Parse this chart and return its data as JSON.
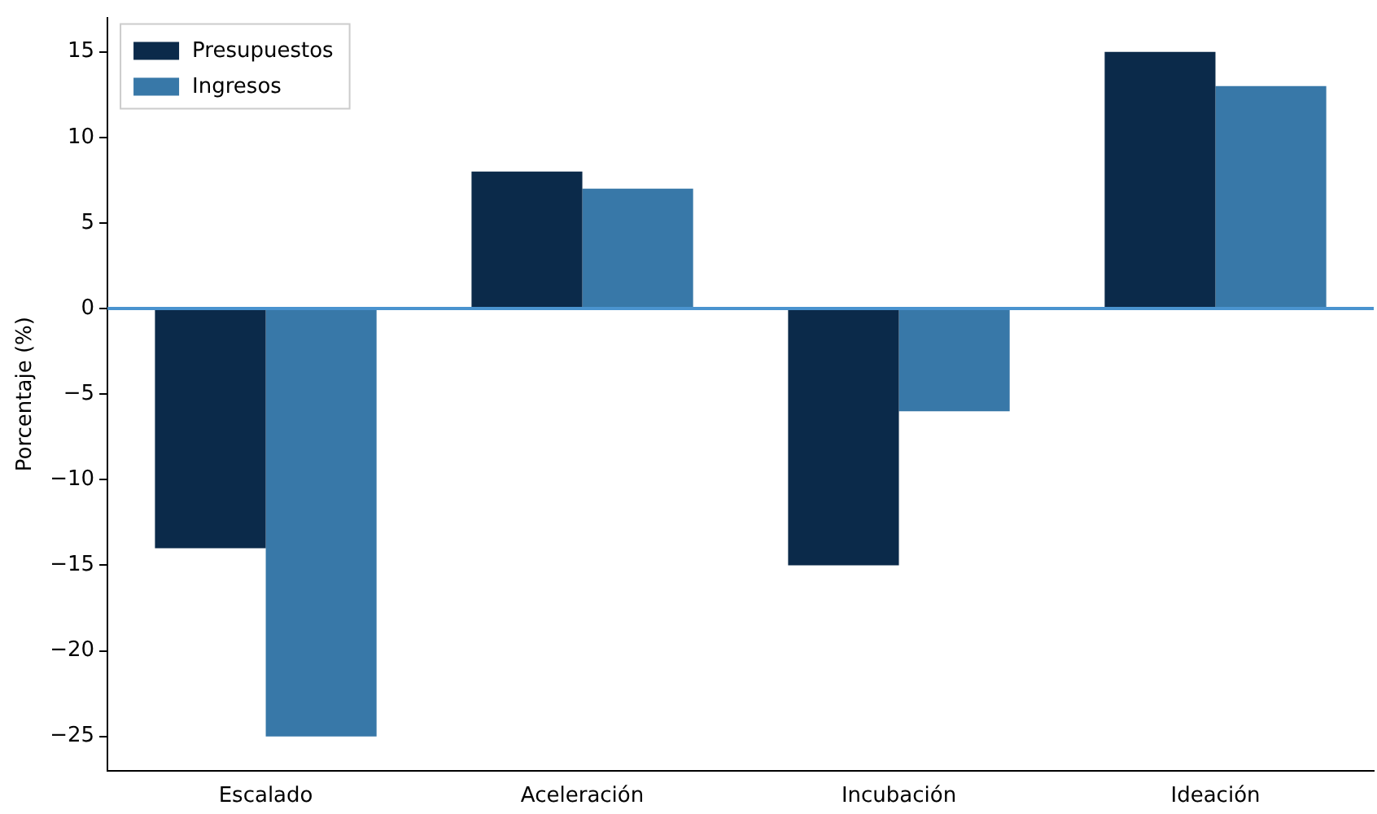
{
  "chart_data": {
    "type": "bar",
    "ylabel": "Porcentaje (%)",
    "categories": [
      "Escalado",
      "Aceleración",
      "Incubación",
      "Ideación"
    ],
    "series": [
      {
        "name": "Presupuestos",
        "color": "#0b2a4a",
        "values": [
          -14,
          8,
          -15,
          15
        ]
      },
      {
        "name": "Ingresos",
        "color": "#3878a8",
        "values": [
          -25,
          7,
          -6,
          13
        ]
      }
    ],
    "ylim": [
      -27,
      17
    ],
    "yticks": [
      -25,
      -20,
      -15,
      -10,
      -5,
      0,
      5,
      10,
      15
    ],
    "grid": false,
    "legend": "top left",
    "ref_lines": [
      {
        "axis": "y",
        "value": 0,
        "color": "#4a93cf"
      }
    ]
  }
}
